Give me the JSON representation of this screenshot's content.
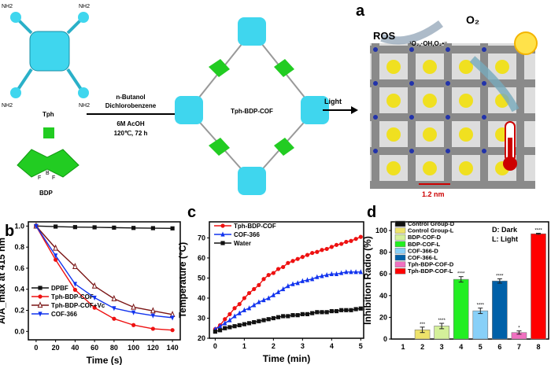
{
  "panel_labels": {
    "a": "a",
    "b": "b",
    "c": "c",
    "d": "d"
  },
  "scheme": {
    "monomer1": "Tph",
    "monomer2": "BDP",
    "amine": "NH2",
    "conditions": [
      "n-Butanol",
      "Dichlorobenzene",
      "6M AcOH",
      "120℃, 72 h"
    ],
    "product": "Tph-BDP-COF",
    "light": "Light",
    "ros": "ROS",
    "ros_species": "¹O₂,·OH,O₂•⁻",
    "oxygen": "O₂",
    "pore_size": "1.2 nm",
    "bdp_f": "F",
    "bdp_b": "B",
    "bdp_n": "N",
    "colors": {
      "porphyrin": "#3fd6ee",
      "bdp": "#22cc22",
      "lattice_yellow": "#f0e020",
      "lattice_grey": "#8a8a8a",
      "scale_bar": "#cc0000"
    }
  },
  "chart_data": [
    {
      "id": "b",
      "type": "line",
      "xlabel": "Time (s)",
      "ylabel": "A/A_max at 415 nm",
      "xlim": [
        -8,
        148
      ],
      "ylim": [
        -0.08,
        1.04
      ],
      "xticks": [
        0,
        20,
        40,
        60,
        80,
        100,
        120,
        140
      ],
      "yticks": [
        0.0,
        0.2,
        0.4,
        0.6,
        0.8,
        1.0
      ],
      "ytick_labels": [
        "0.0",
        "0.2",
        "0.4",
        "0.6",
        "0.8",
        "1.0"
      ],
      "legend": "bottom-left",
      "x": [
        0,
        20,
        40,
        60,
        80,
        100,
        120,
        140
      ],
      "series": [
        {
          "name": "DPBF",
          "color": "#111111",
          "marker": "square",
          "values": [
            1.0,
            0.995,
            0.99,
            0.988,
            0.985,
            0.982,
            0.98,
            0.978
          ]
        },
        {
          "name": "Tph-BDP-COF",
          "color": "#ee1111",
          "marker": "circle",
          "values": [
            1.0,
            0.68,
            0.395,
            0.225,
            0.12,
            0.06,
            0.025,
            0.012
          ]
        },
        {
          "name": "Tph-BDP-COF+Vc",
          "color": "#7a1515",
          "marker": "open-triangle",
          "values": [
            1.0,
            0.79,
            0.615,
            0.43,
            0.31,
            0.23,
            0.195,
            0.16
          ]
        },
        {
          "name": "COF-366",
          "color": "#1133ee",
          "marker": "triangle-down",
          "values": [
            1.0,
            0.72,
            0.45,
            0.32,
            0.22,
            0.18,
            0.15,
            0.13
          ]
        }
      ]
    },
    {
      "id": "c",
      "type": "line",
      "xlabel": "Time (min)",
      "ylabel": "Temperature (°C)",
      "xlim": [
        -0.2,
        5.1
      ],
      "ylim": [
        20,
        78
      ],
      "xticks": [
        0,
        1,
        2,
        3,
        4,
        5
      ],
      "yticks": [
        20,
        30,
        40,
        50,
        60,
        70
      ],
      "legend": "top-left",
      "x_step_min": 0.1667,
      "series": [
        {
          "name": "Tph-BDP-COF",
          "color": "#ee1111",
          "marker": "circle",
          "values": [
            24.5,
            26.5,
            29.5,
            32,
            35,
            37,
            40,
            42.5,
            44.5,
            46.5,
            49.5,
            51.5,
            52.5,
            54.5,
            55.5,
            57.5,
            58.5,
            59.5,
            60.5,
            61.5,
            62.5,
            63,
            64,
            64.5,
            65.5,
            66.5,
            67,
            68,
            68.5,
            69.5,
            70.5
          ]
        },
        {
          "name": "COF-366",
          "color": "#1133ee",
          "marker": "triangle",
          "values": [
            24.5,
            26,
            27.5,
            29,
            31,
            32.5,
            34,
            35,
            36.5,
            38,
            39,
            40,
            41.5,
            43,
            44.5,
            46,
            47,
            47.5,
            48.5,
            49,
            49.5,
            50.5,
            51,
            51.5,
            52,
            52,
            52.5,
            53,
            53,
            53,
            53
          ]
        },
        {
          "name": "Water",
          "color": "#111111",
          "marker": "square",
          "values": [
            23.3,
            24,
            25,
            25.5,
            26,
            26.5,
            27,
            27.5,
            28,
            28.5,
            29,
            29.5,
            30,
            30.5,
            31,
            31,
            31.5,
            31.5,
            32,
            32,
            32.5,
            33,
            33,
            33,
            33.5,
            33.5,
            34,
            34,
            34,
            34.5,
            34.8
          ]
        }
      ]
    },
    {
      "id": "d",
      "type": "bar",
      "xlabel": "",
      "ylabel": "Inhibition Radio (%)",
      "ylim": [
        0,
        108
      ],
      "yticks": [
        0,
        20,
        40,
        60,
        80,
        100
      ],
      "categories": [
        "1",
        "2",
        "3",
        "4",
        "5",
        "6",
        "7",
        "8"
      ],
      "legend": "top-left",
      "annotation": [
        "D: Dark",
        "L: Light"
      ],
      "series": [
        {
          "name": "Control Group-D",
          "color": "#111111",
          "value": 0,
          "error": 0,
          "sig": ""
        },
        {
          "name": "Control Group-L",
          "color": "#eee36a",
          "value": 8.5,
          "error": 2.5,
          "sig": "***"
        },
        {
          "name": "BDP-COF-D",
          "color": "#d4f09a",
          "value": 12,
          "error": 2.5,
          "sig": "****"
        },
        {
          "name": "BDP-COF-L",
          "color": "#22ee22",
          "value": 55,
          "error": 2.5,
          "sig": "****"
        },
        {
          "name": "COF-366-D",
          "color": "#88d0f8",
          "value": 26,
          "error": 2.5,
          "sig": "****"
        },
        {
          "name": "COF-366-L",
          "color": "#0060a8",
          "value": 53.5,
          "error": 2,
          "sig": "****"
        },
        {
          "name": "Tph-BDP-COF-D",
          "color": "#f070c0",
          "value": 6,
          "error": 1.5,
          "sig": "*"
        },
        {
          "name": "Tph-BDP-COF-L",
          "color": "#ff0000",
          "value": 97,
          "error": 0.5,
          "sig": "****"
        }
      ]
    }
  ]
}
